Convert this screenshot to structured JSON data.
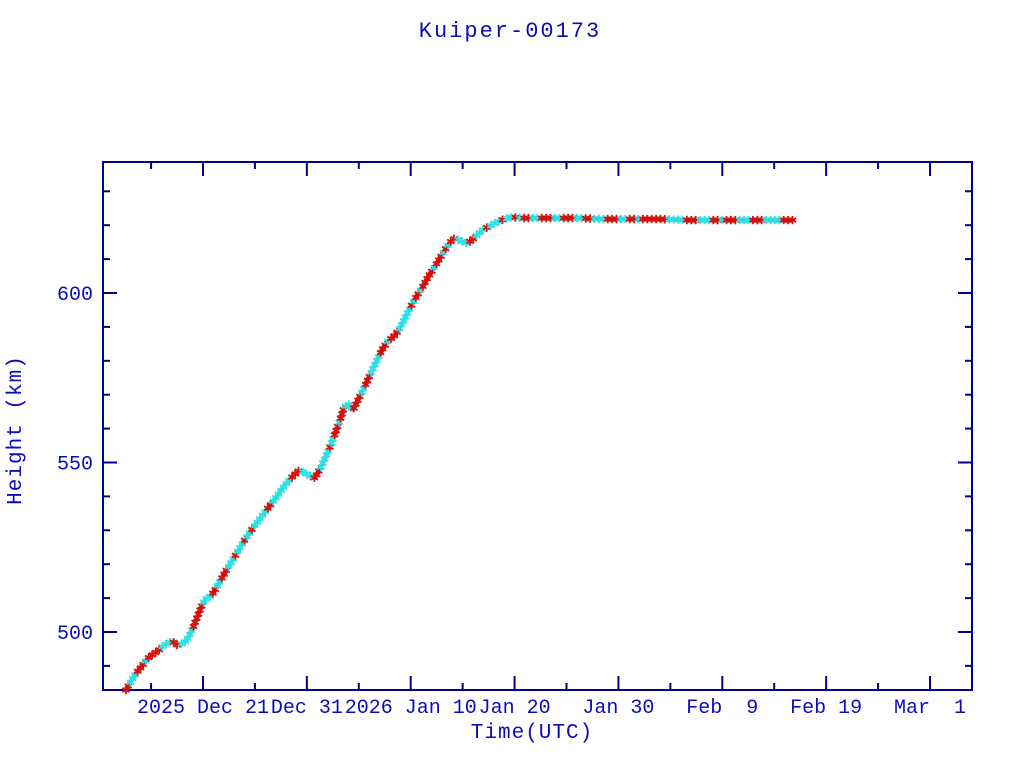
{
  "title": "Kuiper-00173",
  "colors": {
    "background": "#ffffff",
    "frame": "#00008b",
    "line": "#000080",
    "text": "#0d0db8",
    "marker_red": "#d8100c",
    "marker_cyan": "#2fe0e4"
  },
  "chart_data": {
    "type": "line",
    "title": "Kuiper-00173",
    "xlabel": "Time(UTC)",
    "ylabel": "Height (km)",
    "x_unit": "days since 2025-12-21 00:00 UTC",
    "xlim_days": [
      -9.63,
      74.04
    ],
    "ylim": [
      482.9,
      638.6
    ],
    "grid": false,
    "legend": "none",
    "x_major_ticks": [
      {
        "t": 0,
        "label": "2025 Dec 21"
      },
      {
        "t": 10,
        "label": "Dec 31"
      },
      {
        "t": 20,
        "label": "2026 Jan 10"
      },
      {
        "t": 30,
        "label": "Jan 20"
      },
      {
        "t": 40,
        "label": "Jan 30"
      },
      {
        "t": 50,
        "label": "Feb  9"
      },
      {
        "t": 60,
        "label": "Feb 19"
      },
      {
        "t": 70,
        "label": "Mar  1"
      }
    ],
    "x_minor_ticks": [
      -5,
      5,
      15,
      25,
      35,
      45,
      55,
      65
    ],
    "y_major_ticks": [
      {
        "value": 500,
        "label": "500"
      },
      {
        "value": 550,
        "label": "550"
      },
      {
        "value": 600,
        "label": "600"
      }
    ],
    "y_minor_ticks": [
      490,
      510,
      520,
      530,
      540,
      560,
      570,
      580,
      590,
      610,
      620,
      630
    ],
    "series": [
      {
        "name": "orbit-height",
        "line_color": "#000080",
        "marker_style": "asterisk",
        "marker_colors": [
          "#d8100c",
          "#2fe0e4"
        ],
        "points": [
          [
            -7.41,
            482.9
          ],
          [
            -6.93,
            485.5
          ],
          [
            -6.35,
            488.2
          ],
          [
            -5.78,
            490.3
          ],
          [
            -5.3,
            492.3
          ],
          [
            -4.81,
            493.5
          ],
          [
            -4.33,
            494.4
          ],
          [
            -3.85,
            495.9
          ],
          [
            -3.37,
            496.8
          ],
          [
            -2.98,
            497.3
          ],
          [
            -2.5,
            496.2
          ],
          [
            -2.02,
            496.5
          ],
          [
            -1.54,
            497.6
          ],
          [
            -1.06,
            500.6
          ],
          [
            -0.67,
            503.5
          ],
          [
            -0.29,
            506.5
          ],
          [
            0.0,
            508.6
          ],
          [
            0.39,
            510.0
          ],
          [
            0.77,
            510.6
          ],
          [
            1.16,
            512.4
          ],
          [
            1.64,
            515.0
          ],
          [
            2.21,
            518.0
          ],
          [
            2.79,
            520.9
          ],
          [
            3.37,
            523.9
          ],
          [
            3.95,
            526.8
          ],
          [
            4.53,
            529.5
          ],
          [
            5.1,
            531.9
          ],
          [
            5.68,
            534.2
          ],
          [
            6.26,
            536.6
          ],
          [
            6.84,
            538.9
          ],
          [
            7.41,
            541.3
          ],
          [
            7.99,
            543.7
          ],
          [
            8.57,
            545.7
          ],
          [
            9.15,
            547.5
          ],
          [
            9.72,
            547.2
          ],
          [
            10.3,
            546.0
          ],
          [
            10.78,
            545.4
          ],
          [
            11.26,
            548.1
          ],
          [
            11.75,
            551.3
          ],
          [
            12.23,
            554.6
          ],
          [
            12.71,
            558.4
          ],
          [
            13.19,
            562.5
          ],
          [
            13.58,
            566.1
          ],
          [
            13.96,
            567.3
          ],
          [
            14.44,
            565.5
          ],
          [
            14.92,
            568.4
          ],
          [
            15.5,
            572.0
          ],
          [
            16.08,
            575.8
          ],
          [
            16.66,
            579.6
          ],
          [
            17.23,
            583.2
          ],
          [
            17.81,
            585.8
          ],
          [
            18.39,
            587.3
          ],
          [
            18.87,
            589.1
          ],
          [
            19.35,
            592.0
          ],
          [
            19.93,
            595.6
          ],
          [
            20.51,
            598.8
          ],
          [
            21.09,
            601.5
          ],
          [
            21.66,
            604.7
          ],
          [
            22.24,
            607.4
          ],
          [
            22.82,
            610.3
          ],
          [
            23.3,
            612.7
          ],
          [
            23.78,
            615.0
          ],
          [
            24.26,
            616.2
          ],
          [
            24.84,
            615.3
          ],
          [
            25.42,
            614.7
          ],
          [
            25.9,
            615.6
          ],
          [
            26.48,
            617.4
          ],
          [
            27.06,
            618.9
          ],
          [
            27.63,
            619.8
          ],
          [
            28.31,
            620.9
          ],
          [
            28.98,
            621.8
          ],
          [
            29.75,
            622.4
          ],
          [
            30.71,
            622.1
          ],
          [
            32.45,
            622.1
          ],
          [
            34.37,
            622.1
          ],
          [
            36.3,
            622.1
          ],
          [
            38.22,
            621.8
          ],
          [
            41.11,
            621.8
          ],
          [
            44.0,
            621.8
          ],
          [
            46.89,
            621.5
          ],
          [
            49.78,
            621.5
          ],
          [
            52.67,
            621.5
          ],
          [
            55.07,
            621.5
          ],
          [
            57.0,
            621.5
          ]
        ]
      }
    ]
  }
}
